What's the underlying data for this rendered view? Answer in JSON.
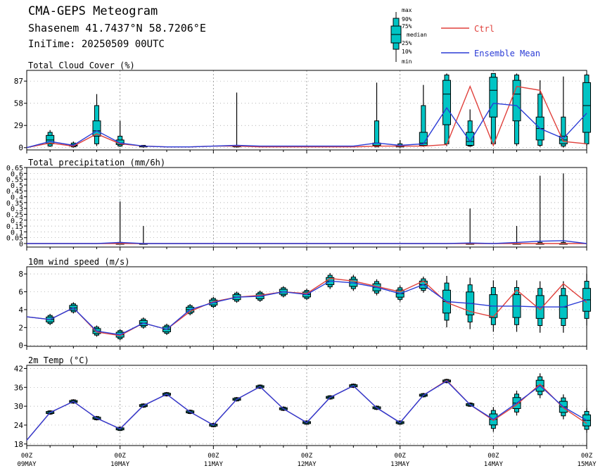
{
  "header": {
    "title": "CMA-GEPS Meteogram",
    "location": "Shasenem 41.7437°N 58.7206°E",
    "init_time": "IniTime: 20250509 00UTC"
  },
  "legend": {
    "box_labels": [
      "max",
      "90%",
      "75%",
      "median",
      "25%",
      "10%",
      "min"
    ],
    "ctrl_label": "Ctrl",
    "mean_label": "Ensemble Mean",
    "colors": {
      "ctrl": "#e0413c",
      "mean": "#2a3bd6",
      "box": "#00c4c4"
    }
  },
  "x_axis": {
    "ticks": [
      {
        "step": 0,
        "top": "00Z",
        "bottom": "09MAY"
      },
      {
        "step": 4,
        "top": "00Z",
        "bottom": "10MAY"
      },
      {
        "step": 8,
        "top": "00Z",
        "bottom": "11MAY"
      },
      {
        "step": 12,
        "top": "00Z",
        "bottom": "12MAY"
      },
      {
        "step": 16,
        "top": "00Z",
        "bottom": "13MAY"
      },
      {
        "step": 20,
        "top": "00Z",
        "bottom": "14MAY"
      },
      {
        "step": 24,
        "top": "00Z",
        "bottom": "15MAY"
      }
    ],
    "step_hours": 6
  },
  "chart_data": [
    {
      "type": "box",
      "title": "Total Cloud Cover (%)",
      "ylim": [
        -3,
        101
      ],
      "yticks": [
        0,
        29,
        58,
        87
      ],
      "ytick_labels": [
        "0",
        "29",
        "58",
        "87"
      ],
      "steps": [
        0,
        1,
        2,
        3,
        4,
        5,
        6,
        7,
        8,
        9,
        10,
        11,
        12,
        13,
        14,
        15,
        16,
        17,
        18,
        19,
        20,
        21,
        22,
        23,
        24
      ],
      "ctrl": [
        0,
        6,
        2,
        18,
        5,
        2,
        1,
        1,
        2,
        2,
        1,
        1,
        1,
        1,
        1,
        2,
        2,
        2,
        4,
        80,
        3,
        80,
        75,
        8,
        5
      ],
      "mean": [
        0,
        8,
        3,
        22,
        6,
        2,
        1,
        1,
        2,
        3,
        2,
        2,
        2,
        2,
        2,
        6,
        3,
        5,
        52,
        8,
        58,
        55,
        25,
        12,
        45
      ],
      "boxes": [
        {
          "step": 1,
          "min": 1,
          "p10": 2,
          "p25": 5,
          "median": 10,
          "p75": 16,
          "p90": 20,
          "max": 23
        },
        {
          "step": 2,
          "min": 0,
          "p10": 1,
          "p25": 2,
          "median": 3,
          "p75": 4,
          "p90": 6,
          "max": 8
        },
        {
          "step": 3,
          "min": 2,
          "p10": 5,
          "p25": 15,
          "median": 22,
          "p75": 35,
          "p90": 55,
          "max": 70
        },
        {
          "step": 4,
          "min": 1,
          "p10": 2,
          "p25": 4,
          "median": 6,
          "p75": 10,
          "p90": 15,
          "max": 35
        },
        {
          "step": 5,
          "min": 0,
          "p10": 1,
          "p25": 1,
          "median": 2,
          "p75": 2,
          "p90": 3,
          "max": 3
        },
        {
          "step": 9,
          "min": 0,
          "p10": 1,
          "p25": 1,
          "median": 2,
          "p75": 2,
          "p90": 3,
          "max": 72
        },
        {
          "step": 15,
          "min": 1,
          "p10": 1,
          "p25": 2,
          "median": 3,
          "p75": 6,
          "p90": 35,
          "max": 85
        },
        {
          "step": 16,
          "min": 0,
          "p10": 1,
          "p25": 1,
          "median": 2,
          "p75": 3,
          "p90": 5,
          "max": 10
        },
        {
          "step": 17,
          "min": 1,
          "p10": 2,
          "p25": 3,
          "median": 6,
          "p75": 20,
          "p90": 55,
          "max": 82
        },
        {
          "step": 18,
          "min": 2,
          "p10": 5,
          "p25": 30,
          "median": 70,
          "p75": 88,
          "p90": 95,
          "max": 97
        },
        {
          "step": 19,
          "min": 1,
          "p10": 2,
          "p25": 3,
          "median": 8,
          "p75": 20,
          "p90": 35,
          "max": 50
        },
        {
          "step": 20,
          "min": 2,
          "p10": 5,
          "p25": 40,
          "median": 75,
          "p75": 92,
          "p90": 97,
          "max": 97
        },
        {
          "step": 21,
          "min": 2,
          "p10": 5,
          "p25": 35,
          "median": 70,
          "p75": 88,
          "p90": 95,
          "max": 97
        },
        {
          "step": 22,
          "min": 1,
          "p10": 3,
          "p25": 10,
          "median": 25,
          "p75": 40,
          "p90": 70,
          "max": 88
        },
        {
          "step": 23,
          "min": 0,
          "p10": 2,
          "p25": 5,
          "median": 10,
          "p75": 15,
          "p90": 40,
          "max": 93
        },
        {
          "step": 24,
          "min": 2,
          "p10": 5,
          "p25": 20,
          "median": 55,
          "p75": 85,
          "p90": 95,
          "max": 97
        }
      ]
    },
    {
      "type": "box",
      "title": "Total precipitation (mm/6h)",
      "ylim": [
        -0.03,
        0.65
      ],
      "yticks": [
        0,
        0.05,
        0.1,
        0.15,
        0.2,
        0.25,
        0.3,
        0.35,
        0.4,
        0.45,
        0.5,
        0.55,
        0.6,
        0.65
      ],
      "ytick_labels": [
        "0",
        "0.05",
        "0.1",
        "0.15",
        "0.2",
        "0.25",
        "0.3",
        "0.35",
        "0.4",
        "0.45",
        "0.5",
        "0.55",
        "0.6",
        "0.65"
      ],
      "steps": [
        0,
        1,
        2,
        3,
        4,
        5,
        6,
        7,
        8,
        9,
        10,
        11,
        12,
        13,
        14,
        15,
        16,
        17,
        18,
        19,
        20,
        21,
        22,
        23,
        24
      ],
      "ctrl": [
        0,
        0,
        0,
        0,
        0,
        0,
        0,
        0,
        0,
        0,
        0,
        0,
        0,
        0,
        0,
        0,
        0,
        0,
        0,
        0,
        0,
        0,
        0,
        0,
        0
      ],
      "mean": [
        0,
        0,
        0,
        0,
        0.01,
        0,
        0,
        0,
        0,
        0,
        0,
        0,
        0,
        0,
        0,
        0,
        0,
        0,
        0,
        0.005,
        0,
        0.01,
        0.02,
        0.025,
        0
      ],
      "boxes": [
        {
          "step": 4,
          "min": 0,
          "p10": 0,
          "p25": 0,
          "median": 0,
          "p75": 0,
          "p90": 0.01,
          "max": 0.36
        },
        {
          "step": 5,
          "min": 0,
          "p10": 0,
          "p25": 0,
          "median": 0,
          "p75": 0,
          "p90": 0,
          "max": 0.15
        },
        {
          "step": 19,
          "min": 0,
          "p10": 0,
          "p25": 0,
          "median": 0,
          "p75": 0,
          "p90": 0,
          "max": 0.3
        },
        {
          "step": 21,
          "min": 0,
          "p10": 0,
          "p25": 0,
          "median": 0,
          "p75": 0,
          "p90": 0,
          "max": 0.15
        },
        {
          "step": 22,
          "min": 0,
          "p10": 0,
          "p25": 0,
          "median": 0,
          "p75": 0,
          "p90": 0.01,
          "max": 0.58
        },
        {
          "step": 23,
          "min": 0,
          "p10": 0,
          "p25": 0,
          "median": 0,
          "p75": 0,
          "p90": 0.01,
          "max": 0.6
        }
      ]
    },
    {
      "type": "box",
      "title": "10m wind speed (m/s)",
      "ylim": [
        -0.1,
        8.8
      ],
      "yticks": [
        0,
        2,
        4,
        6,
        8
      ],
      "ytick_labels": [
        "0",
        "2",
        "4",
        "6",
        "8"
      ],
      "steps": [
        0,
        1,
        2,
        3,
        4,
        5,
        6,
        7,
        8,
        9,
        10,
        11,
        12,
        13,
        14,
        15,
        16,
        17,
        18,
        19,
        20,
        21,
        22,
        23,
        24
      ],
      "ctrl": [
        3.2,
        2.9,
        4.2,
        1.5,
        1.1,
        2.5,
        1.8,
        3.8,
        4.9,
        5.4,
        5.6,
        6.0,
        5.8,
        7.5,
        7.2,
        6.6,
        6.0,
        7.2,
        4.8,
        3.8,
        3.2,
        6.2,
        4.0,
        6.9,
        4.8
      ],
      "mean": [
        3.2,
        2.9,
        4.2,
        1.6,
        1.2,
        2.5,
        1.8,
        4.0,
        4.8,
        5.4,
        5.5,
        6.0,
        5.7,
        7.2,
        7.0,
        6.5,
        5.8,
        6.8,
        4.9,
        4.7,
        4.4,
        4.4,
        4.3,
        4.3,
        5.1
      ]
    },
    {
      "type": "box",
      "title": "2m Temp (°C)",
      "ylim": [
        17.5,
        43
      ],
      "yticks": [
        18,
        24,
        30,
        36,
        42
      ],
      "ytick_labels": [
        "18",
        "24",
        "30",
        "36",
        "42"
      ],
      "steps": [
        0,
        1,
        2,
        3,
        4,
        5,
        6,
        7,
        8,
        9,
        10,
        11,
        12,
        13,
        14,
        15,
        16,
        17,
        18,
        19,
        20,
        21,
        22,
        23,
        24
      ],
      "ctrl": [
        19.2,
        28.0,
        31.5,
        26.2,
        22.8,
        30.2,
        33.8,
        28.2,
        24.0,
        32.2,
        36.2,
        29.2,
        24.8,
        32.8,
        36.5,
        29.5,
        24.8,
        33.5,
        38.2,
        30.5,
        25.5,
        30.5,
        37.0,
        29.5,
        24.5
      ],
      "mean": [
        19.2,
        28.0,
        31.5,
        26.2,
        22.8,
        30.2,
        33.8,
        28.2,
        24.0,
        32.2,
        36.2,
        29.2,
        24.8,
        32.8,
        36.5,
        29.5,
        24.8,
        33.5,
        38.0,
        30.5,
        25.8,
        31.0,
        36.5,
        29.8,
        25.5
      ]
    }
  ]
}
